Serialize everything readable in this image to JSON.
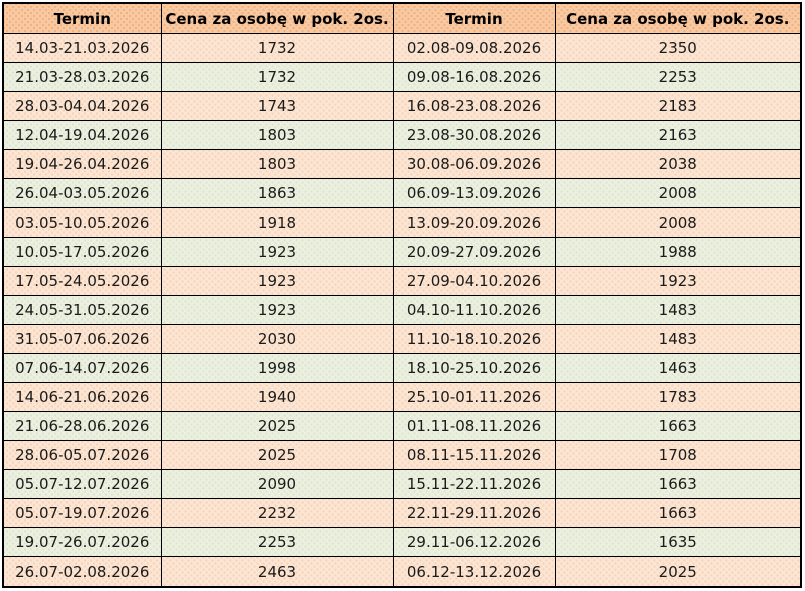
{
  "chart_data": {
    "type": "table",
    "title": "",
    "columns": [
      "Termin",
      "Cena za osobę w pok. 2os.",
      "Termin",
      "Cena za osobę w pok. 2os."
    ],
    "rows": [
      [
        "14.03-21.03.2026",
        "1732",
        "02.08-09.08.2026",
        "2350"
      ],
      [
        "21.03-28.03.2026",
        "1732",
        "09.08-16.08.2026",
        "2253"
      ],
      [
        "28.03-04.04.2026",
        "1743",
        "16.08-23.08.2026",
        "2183"
      ],
      [
        "12.04-19.04.2026",
        "1803",
        "23.08-30.08.2026",
        "2163"
      ],
      [
        "19.04-26.04.2026",
        "1803",
        "30.08-06.09.2026",
        "2038"
      ],
      [
        "26.04-03.05.2026",
        "1863",
        "06.09-13.09.2026",
        "2008"
      ],
      [
        "03.05-10.05.2026",
        "1918",
        "13.09-20.09.2026",
        "2008"
      ],
      [
        "10.05-17.05.2026",
        "1923",
        "20.09-27.09.2026",
        "1988"
      ],
      [
        "17.05-24.05.2026",
        "1923",
        "27.09-04.10.2026",
        "1923"
      ],
      [
        "24.05-31.05.2026",
        "1923",
        "04.10-11.10.2026",
        "1483"
      ],
      [
        "31.05-07.06.2026",
        "2030",
        "11.10-18.10.2026",
        "1483"
      ],
      [
        "07.06-14.07.2026",
        "1998",
        "18.10-25.10.2026",
        "1463"
      ],
      [
        "14.06-21.06.2026",
        "1940",
        "25.10-01.11.2026",
        "1783"
      ],
      [
        "21.06-28.06.2026",
        "2025",
        "01.11-08.11.2026",
        "1663"
      ],
      [
        "28.06-05.07.2026",
        "2025",
        "08.11-15.11.2026",
        "1708"
      ],
      [
        "05.07-12.07.2026",
        "2090",
        "15.11-22.11.2026",
        "1663"
      ],
      [
        "05.07-19.07.2026",
        "2232",
        "22.11-29.11.2026",
        "1663"
      ],
      [
        "19.07-26.07.2026",
        "2253",
        "29.11-06.12.2026",
        "1635"
      ],
      [
        "26.07-02.08.2026",
        "2463",
        "06.12-13.12.2026",
        "2025"
      ]
    ]
  },
  "colors": {
    "header_bg": "#f9c9a2",
    "row_peach_bg": "#fce5d3",
    "row_green_bg": "#ebf0e0",
    "border": "#000000",
    "text": "#1a1a1a"
  }
}
